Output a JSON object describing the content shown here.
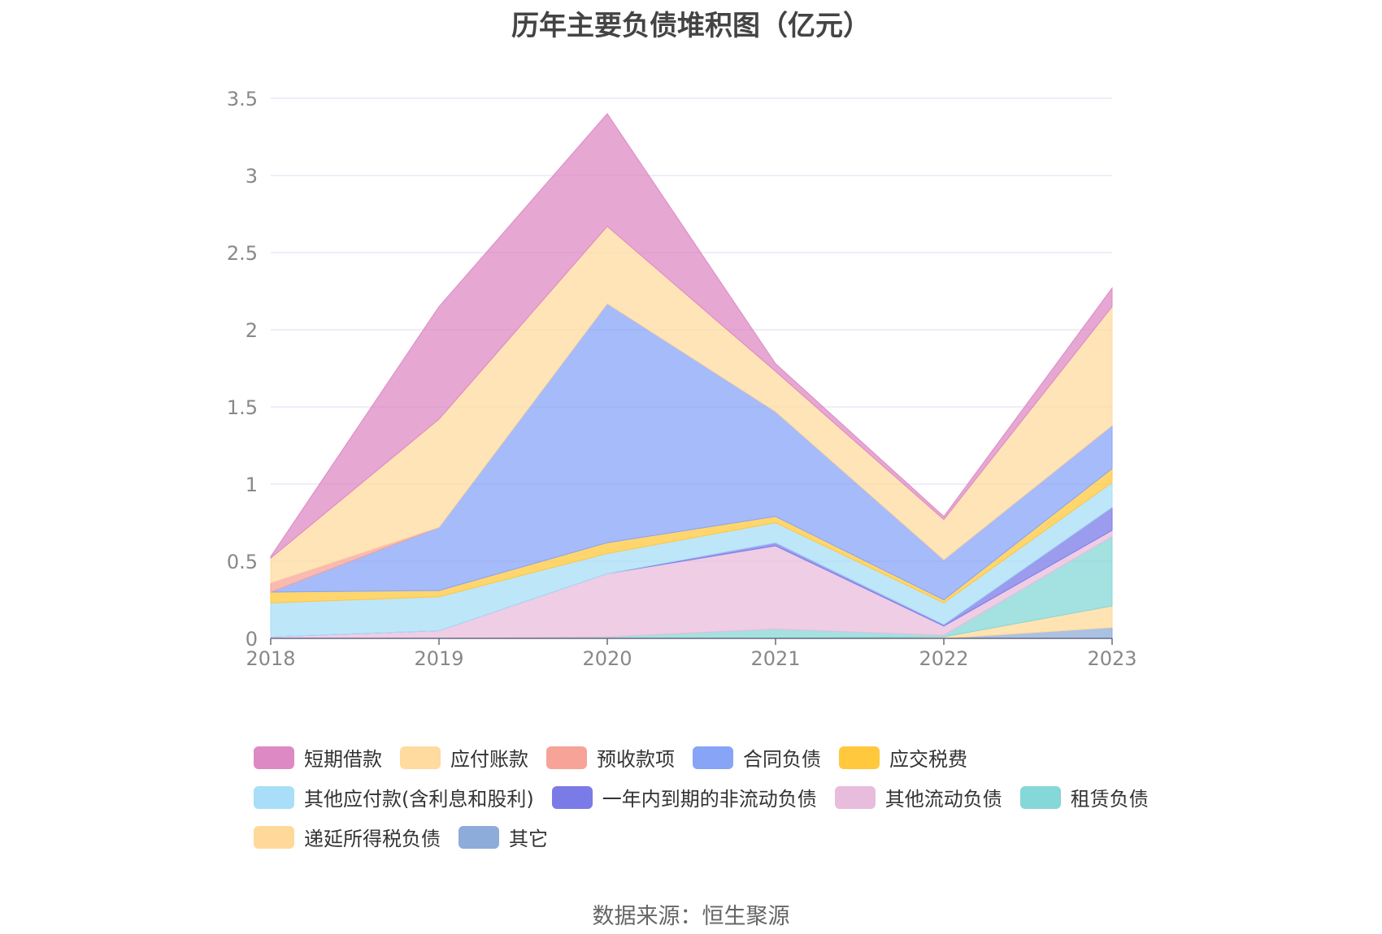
{
  "title": "历年主要负债堆积图（亿元）",
  "source": "数据来源：恒生聚源",
  "chart_data": {
    "type": "area",
    "stacked": true,
    "title": "历年主要负债堆积图（亿元）",
    "xlabel": "",
    "ylabel": "",
    "categories": [
      "2018",
      "2019",
      "2020",
      "2021",
      "2022",
      "2023"
    ],
    "ylim": [
      0,
      3.5
    ],
    "yticks": [
      "0",
      "0.5",
      "1",
      "1.5",
      "2",
      "2.5",
      "3",
      "3.5"
    ],
    "grid": true,
    "legend_position": "bottom",
    "series": [
      {
        "name": "其它",
        "color": "#8eacd9",
        "values": [
          0,
          0,
          0,
          0,
          0,
          0.07
        ]
      },
      {
        "name": "递延所得税负债",
        "color": "#ffd99a",
        "values": [
          0,
          0,
          0,
          0,
          0.01,
          0.14
        ]
      },
      {
        "name": "租赁负债",
        "color": "#86d7d7",
        "values": [
          0,
          0,
          0.01,
          0.06,
          0.01,
          0.45
        ]
      },
      {
        "name": "其他流动负债",
        "color": "#e8bcdc",
        "values": [
          0.01,
          0.05,
          0.41,
          0.54,
          0.06,
          0.04
        ]
      },
      {
        "name": "一年内到期的非流动负债",
        "color": "#7b7be8",
        "values": [
          0,
          0,
          0,
          0.02,
          0.01,
          0.15
        ]
      },
      {
        "name": "其他应付款(含利息和股利)",
        "color": "#a8def7",
        "values": [
          0.22,
          0.22,
          0.13,
          0.13,
          0.14,
          0.16
        ]
      },
      {
        "name": "应交税费",
        "color": "#ffc83d",
        "values": [
          0.07,
          0.04,
          0.07,
          0.04,
          0.02,
          0.09
        ]
      },
      {
        "name": "合同负债",
        "color": "#88a4f7",
        "values": [
          0,
          0.41,
          1.55,
          0.68,
          0.26,
          0.28
        ]
      },
      {
        "name": "预收款项",
        "color": "#f7a397",
        "values": [
          0.06,
          0,
          0,
          0,
          0,
          0
        ]
      },
      {
        "name": "应付账款",
        "color": "#ffdba0",
        "values": [
          0.16,
          0.7,
          0.5,
          0.26,
          0.26,
          0.77
        ]
      },
      {
        "name": "短期借款",
        "color": "#dd8ac4",
        "values": [
          0.01,
          0.73,
          0.73,
          0.05,
          0.02,
          0.12
        ]
      }
    ]
  },
  "legend_rows": [
    [
      {
        "name": "短期借款",
        "color": "#dd8ac4"
      },
      {
        "name": "应付账款",
        "color": "#ffdba0"
      },
      {
        "name": "预收款项",
        "color": "#f7a397"
      },
      {
        "name": "合同负债",
        "color": "#88a4f7"
      },
      {
        "name": "应交税费",
        "color": "#ffc83d"
      }
    ],
    [
      {
        "name": "其他应付款(含利息和股利)",
        "color": "#a8def7"
      },
      {
        "name": "一年内到期的非流动负债",
        "color": "#7b7be8"
      },
      {
        "name": "其他流动负债",
        "color": "#e8bcdc"
      },
      {
        "name": "租赁负债",
        "color": "#86d7d7"
      }
    ],
    [
      {
        "name": "递延所得税负债",
        "color": "#ffd99a"
      },
      {
        "name": "其它",
        "color": "#8eacd9"
      }
    ]
  ]
}
